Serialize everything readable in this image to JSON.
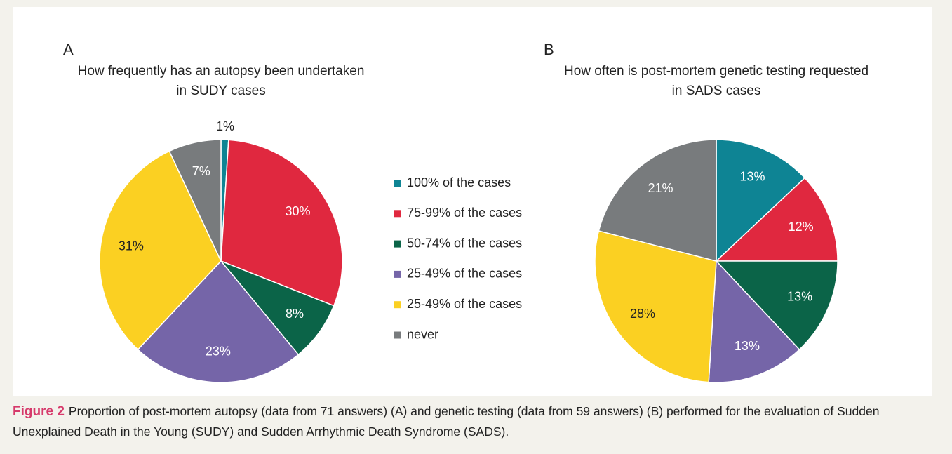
{
  "legend": {
    "labels": [
      "100% of the cases",
      "75-99% of the cases",
      "50-74% of the cases",
      "25-49% of the cases",
      "25-49% of the cases",
      "never"
    ],
    "colors": [
      "#0e8494",
      "#e0283f",
      "#0b6448",
      "#7565a8",
      "#fbd022",
      "#787b7d"
    ]
  },
  "chart_data": [
    {
      "type": "pie",
      "panel": "A",
      "title": [
        "How frequently has an autopsy been undertaken",
        "in SUDY cases"
      ],
      "values": [
        1,
        30,
        8,
        23,
        31,
        7
      ],
      "value_labels": [
        "1%",
        "30%",
        "8%",
        "23%",
        "31%",
        "7%"
      ]
    },
    {
      "type": "pie",
      "panel": "B",
      "title": [
        "How often is post-mortem genetic testing requested",
        "in SADS cases"
      ],
      "values": [
        13,
        12,
        13,
        13,
        28,
        21
      ],
      "value_labels": [
        "13%",
        "12%",
        "13%",
        "13%",
        "28%",
        "21%"
      ]
    }
  ],
  "caption": {
    "label": "Figure 2",
    "text": "Proportion of post-mortem autopsy (data from 71 answers) (A) and genetic testing (data from 59 answers) (B) performed for the evaluation of Sudden Unexplained Death in the Young (SUDY) and Sudden Arrhythmic Death Syndrome (SADS)."
  }
}
